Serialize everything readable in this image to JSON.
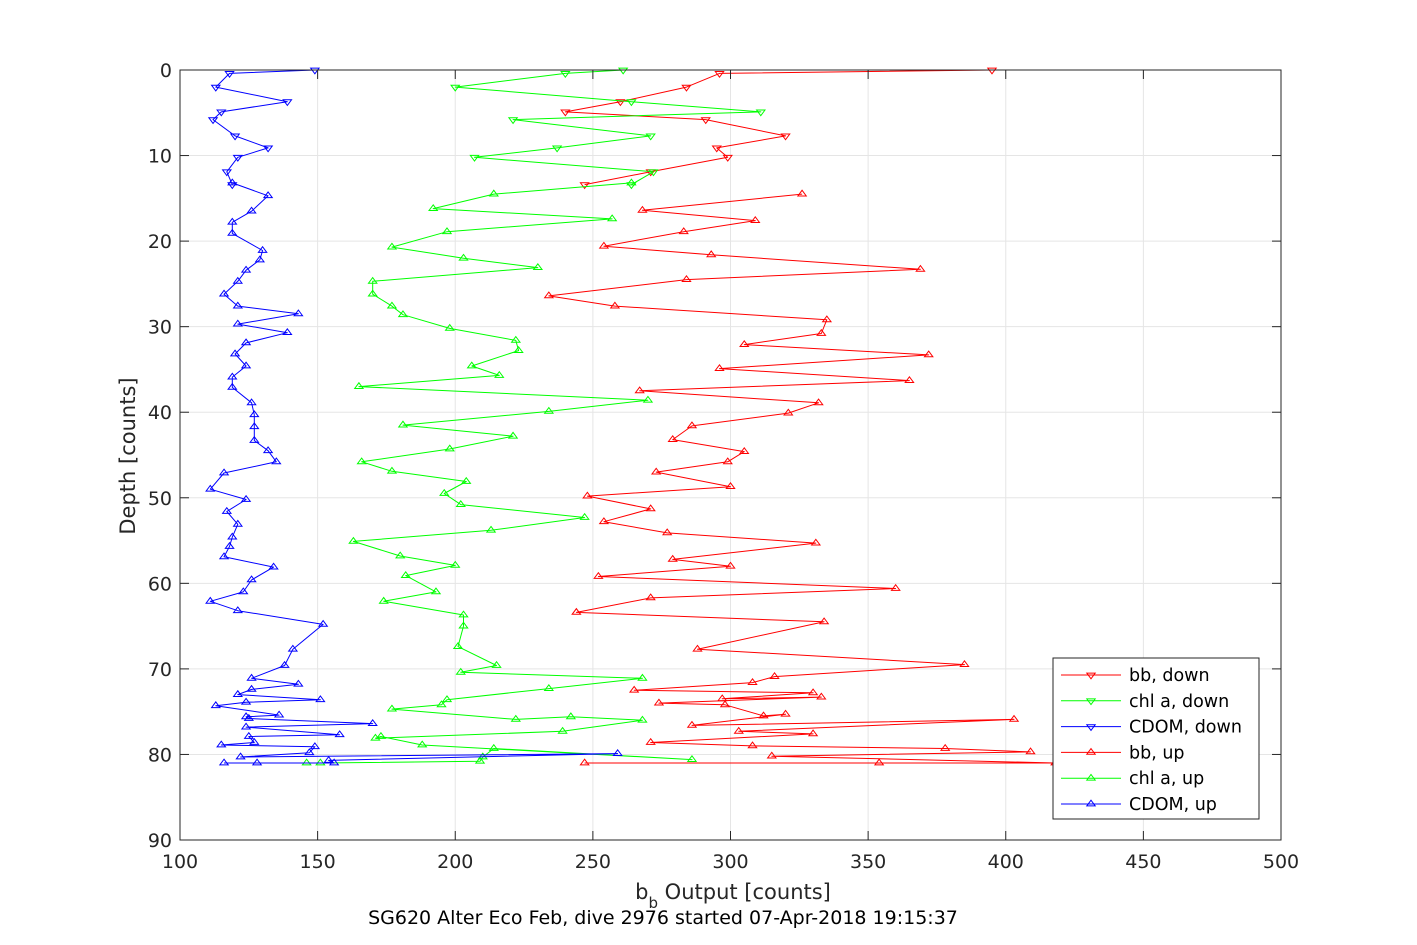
{
  "chart_data": {
    "type": "line",
    "title": "SG620 Alter Eco Feb, dive 2976 started 07-Apr-2018 19:15:37",
    "xlabel_main": "b",
    "xlabel_sub": "b",
    "xlabel_rest": " Output [counts]",
    "ylabel": "Depth [counts]",
    "xlim": [
      100,
      500
    ],
    "ylim": [
      0,
      90
    ],
    "y_reversed": true,
    "grid": true,
    "x_ticks": [
      "100",
      "150",
      "200",
      "250",
      "300",
      "350",
      "400",
      "450",
      "500"
    ],
    "y_ticks": [
      "0",
      "10",
      "20",
      "30",
      "40",
      "50",
      "60",
      "70",
      "80",
      "90"
    ],
    "legend_position": "bottom-right",
    "series": [
      {
        "name": "bb, down",
        "color": "#ff0000",
        "marker": "triangle-down",
        "points": [
          [
            395,
            0
          ],
          [
            296,
            0.4
          ],
          [
            284,
            2
          ],
          [
            260,
            3.7
          ],
          [
            240,
            4.9
          ],
          [
            291,
            5.8
          ],
          [
            320,
            7.7
          ],
          [
            295,
            9.1
          ],
          [
            299,
            10.2
          ],
          [
            271,
            11.9
          ],
          [
            247,
            13.4
          ]
        ]
      },
      {
        "name": "chl a, down",
        "color": "#00ff00",
        "marker": "triangle-down",
        "points": [
          [
            261,
            0
          ],
          [
            240,
            0.4
          ],
          [
            200,
            2
          ],
          [
            264,
            3.7
          ],
          [
            311,
            4.9
          ],
          [
            221,
            5.8
          ],
          [
            271,
            7.7
          ],
          [
            237,
            9.1
          ],
          [
            207,
            10.2
          ],
          [
            272,
            11.9
          ],
          [
            264,
            13.4
          ]
        ]
      },
      {
        "name": "CDOM, down",
        "color": "#0000ff",
        "marker": "triangle-down",
        "points": [
          [
            149,
            0
          ],
          [
            118,
            0.4
          ],
          [
            113,
            2
          ],
          [
            139,
            3.7
          ],
          [
            115,
            4.9
          ],
          [
            112,
            5.8
          ],
          [
            120,
            7.7
          ],
          [
            132,
            9.1
          ],
          [
            121,
            10.2
          ],
          [
            117,
            11.9
          ],
          [
            119,
            13.4
          ]
        ]
      },
      {
        "name": "bb, up",
        "color": "#ff0000",
        "marker": "triangle-up",
        "points": [
          [
            247,
            81
          ],
          [
            354,
            81
          ],
          [
            418,
            81
          ],
          [
            315,
            80.2
          ],
          [
            409,
            79.7
          ],
          [
            378,
            79.3
          ],
          [
            308,
            79
          ],
          [
            271,
            78.6
          ],
          [
            330,
            77.6
          ],
          [
            303,
            77.3
          ],
          [
            403,
            75.9
          ],
          [
            286,
            76.6
          ],
          [
            320,
            75.3
          ],
          [
            312,
            75.5
          ],
          [
            298,
            74.2
          ],
          [
            274,
            74
          ],
          [
            333,
            73.3
          ],
          [
            297,
            73.5
          ],
          [
            330,
            72.8
          ],
          [
            265,
            72.5
          ],
          [
            308,
            71.6
          ],
          [
            316,
            70.9
          ],
          [
            385,
            69.5
          ],
          [
            288,
            67.7
          ],
          [
            334,
            64.5
          ],
          [
            244,
            63.4
          ],
          [
            271,
            61.7
          ],
          [
            360,
            60.6
          ],
          [
            252,
            59.2
          ],
          [
            300,
            58
          ],
          [
            279,
            57.2
          ],
          [
            331,
            55.3
          ],
          [
            277,
            54.1
          ],
          [
            254,
            52.8
          ],
          [
            271,
            51.3
          ],
          [
            248,
            49.8
          ],
          [
            300,
            48.7
          ],
          [
            273,
            47
          ],
          [
            299,
            45.8
          ],
          [
            305,
            44.6
          ],
          [
            279,
            43.2
          ],
          [
            286,
            41.6
          ],
          [
            321,
            40.1
          ],
          [
            332,
            38.9
          ],
          [
            267,
            37.5
          ],
          [
            365,
            36.3
          ],
          [
            296,
            34.9
          ],
          [
            372,
            33.3
          ],
          [
            305,
            32.1
          ],
          [
            333,
            30.8
          ],
          [
            335,
            29.2
          ],
          [
            258,
            27.6
          ],
          [
            234,
            26.4
          ],
          [
            284,
            24.5
          ],
          [
            369,
            23.3
          ],
          [
            293,
            21.6
          ],
          [
            254,
            20.6
          ],
          [
            283,
            18.9
          ],
          [
            309,
            17.6
          ],
          [
            268,
            16.4
          ],
          [
            326,
            14.5
          ]
        ]
      },
      {
        "name": "chl a, up",
        "color": "#00ff00",
        "marker": "triangle-up",
        "points": [
          [
            146,
            81
          ],
          [
            151,
            81
          ],
          [
            209,
            80.8
          ],
          [
            210,
            80.3
          ],
          [
            214,
            79.3
          ],
          [
            286,
            80.6
          ],
          [
            188,
            78.9
          ],
          [
            173,
            77.9
          ],
          [
            171,
            78.1
          ],
          [
            239,
            77.3
          ],
          [
            268,
            76
          ],
          [
            242,
            75.6
          ],
          [
            222,
            75.9
          ],
          [
            177,
            74.7
          ],
          [
            195,
            74.2
          ],
          [
            197,
            73.6
          ],
          [
            234,
            72.3
          ],
          [
            268,
            71.1
          ],
          [
            202,
            70.4
          ],
          [
            215,
            69.6
          ],
          [
            201,
            67.4
          ],
          [
            203,
            65
          ],
          [
            203,
            63.7
          ],
          [
            174,
            62.1
          ],
          [
            193,
            61
          ],
          [
            182,
            59.1
          ],
          [
            200,
            57.9
          ],
          [
            180,
            56.8
          ],
          [
            163,
            55.1
          ],
          [
            213,
            53.8
          ],
          [
            247,
            52.3
          ],
          [
            202,
            50.8
          ],
          [
            196,
            49.5
          ],
          [
            204,
            48.1
          ],
          [
            177,
            46.9
          ],
          [
            166,
            45.8
          ],
          [
            198,
            44.3
          ],
          [
            221,
            42.8
          ],
          [
            181,
            41.5
          ],
          [
            234,
            39.9
          ],
          [
            270,
            38.6
          ],
          [
            165,
            37
          ],
          [
            216,
            35.7
          ],
          [
            206,
            34.6
          ],
          [
            223,
            32.8
          ],
          [
            222,
            31.6
          ],
          [
            198,
            30.2
          ],
          [
            181,
            28.6
          ],
          [
            177,
            27.6
          ],
          [
            170,
            26.2
          ],
          [
            170,
            24.7
          ],
          [
            230,
            23.1
          ],
          [
            203,
            22
          ],
          [
            177,
            20.7
          ],
          [
            197,
            18.9
          ],
          [
            257,
            17.4
          ],
          [
            192,
            16.2
          ],
          [
            214,
            14.5
          ],
          [
            264,
            13.2
          ]
        ]
      },
      {
        "name": "CDOM, up",
        "color": "#0000ff",
        "marker": "triangle-up",
        "points": [
          [
            116,
            81
          ],
          [
            128,
            81
          ],
          [
            156,
            81
          ],
          [
            154,
            80.7
          ],
          [
            259,
            79.9
          ],
          [
            122,
            80.3
          ],
          [
            147,
            79.8
          ],
          [
            149,
            79.1
          ],
          [
            115,
            78.9
          ],
          [
            127,
            78.6
          ],
          [
            125,
            77.9
          ],
          [
            158,
            77.7
          ],
          [
            124,
            76.8
          ],
          [
            170,
            76.4
          ],
          [
            125,
            75.8
          ],
          [
            124,
            75.6
          ],
          [
            136,
            75.4
          ],
          [
            113,
            74.3
          ],
          [
            124,
            73.9
          ],
          [
            151,
            73.6
          ],
          [
            121,
            73
          ],
          [
            126,
            72.4
          ],
          [
            143,
            71.8
          ],
          [
            126,
            71.1
          ],
          [
            138,
            69.6
          ],
          [
            141,
            67.7
          ],
          [
            152,
            64.8
          ],
          [
            121,
            63.2
          ],
          [
            111,
            62.1
          ],
          [
            123,
            61
          ],
          [
            126,
            59.6
          ],
          [
            134,
            58.1
          ],
          [
            116,
            56.9
          ],
          [
            118,
            55.7
          ],
          [
            119,
            54.6
          ],
          [
            121,
            53.1
          ],
          [
            117,
            51.6
          ],
          [
            124,
            50.2
          ],
          [
            111,
            49
          ],
          [
            116,
            47.1
          ],
          [
            135,
            45.8
          ],
          [
            132,
            44.5
          ],
          [
            127,
            43.3
          ],
          [
            127,
            41.7
          ],
          [
            127,
            40.3
          ],
          [
            126,
            38.9
          ],
          [
            119,
            37.1
          ],
          [
            119,
            35.9
          ],
          [
            124,
            34.6
          ],
          [
            120,
            33.2
          ],
          [
            124,
            31.9
          ],
          [
            139,
            30.7
          ],
          [
            121,
            29.7
          ],
          [
            143,
            28.5
          ],
          [
            121,
            27.6
          ],
          [
            116,
            26.2
          ],
          [
            121,
            24.7
          ],
          [
            124,
            23.4
          ],
          [
            129,
            22.2
          ],
          [
            130,
            21.1
          ],
          [
            119,
            19.1
          ],
          [
            119,
            17.8
          ],
          [
            126,
            16.5
          ],
          [
            132,
            14.7
          ],
          [
            119,
            13.2
          ]
        ]
      }
    ]
  }
}
